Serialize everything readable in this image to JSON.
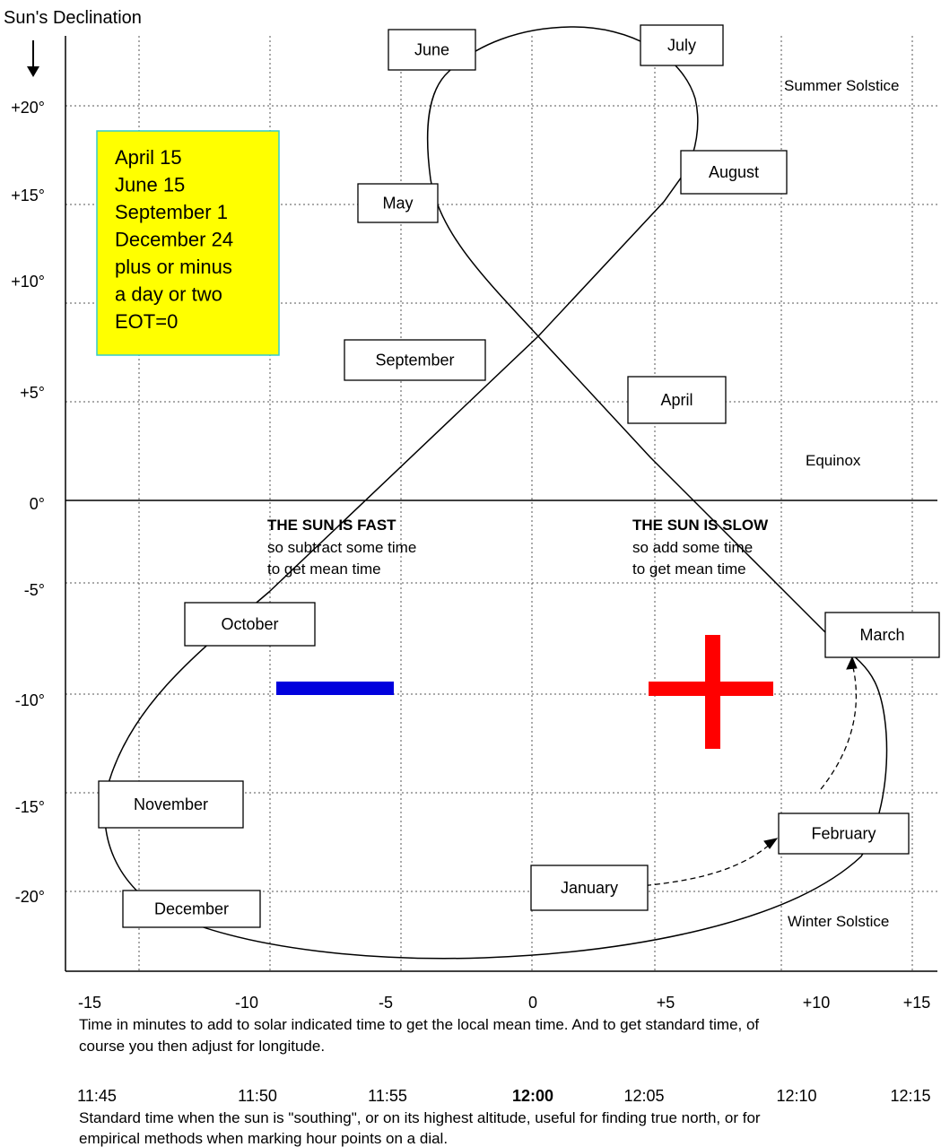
{
  "title": "Sun's Declination",
  "y_labels": [
    "+20°",
    "+15°",
    "+10°",
    "+5°",
    "0°",
    "-5°",
    "-10°",
    "-15°",
    "-20°"
  ],
  "months": [
    "June",
    "July",
    "August",
    "May",
    "September",
    "April",
    "October",
    "March",
    "November",
    "February",
    "January",
    "December"
  ],
  "note": [
    "April 15",
    "June 15",
    "September 1",
    "December 24",
    "plus or minus",
    "a day or two",
    "EOT=0"
  ],
  "seasons": [
    "Summer Solstice",
    "Equinox",
    "Winter Solstice"
  ],
  "fast": {
    "heading": "THE SUN IS FAST",
    "lines": [
      "so subtract some time",
      "to get mean time"
    ]
  },
  "slow": {
    "heading": "THE SUN IS SLOW",
    "lines": [
      "so add some time",
      "to get mean time"
    ]
  },
  "x_labels": [
    "-15",
    "-10",
    "-5",
    "0",
    "+5",
    "+10",
    "+15"
  ],
  "x_caption": [
    "Time in minutes to add to solar indicated time to get the local mean time. And to get standard time, of",
    "course you then adjust for longitude."
  ],
  "time_labels": [
    "11:45",
    "11:50",
    "11:55",
    "12:00",
    "12:05",
    "12:10",
    "12:15"
  ],
  "time_caption": [
    "Standard time when the sun is \"southing\", or on its highest altitude, useful for finding true north, or for",
    "empirical methods when marking hour points on a dial."
  ]
}
